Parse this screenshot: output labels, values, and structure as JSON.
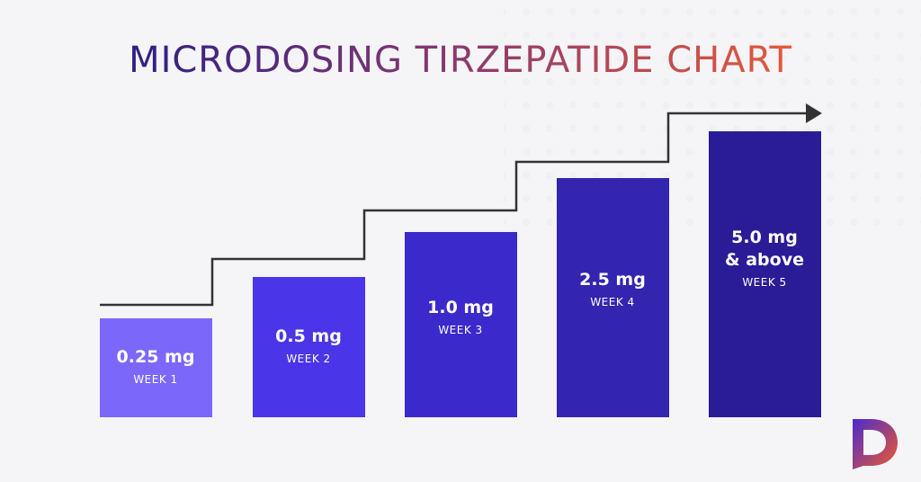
{
  "title": "MICRODOSING TIRZEPATIDE CHART",
  "steps": [
    {
      "dose": [
        "0.25 mg"
      ],
      "week": "WEEK 1"
    },
    {
      "dose": [
        "0.5 mg"
      ],
      "week": "WEEK 2"
    },
    {
      "dose": [
        "1.0 mg"
      ],
      "week": "WEEK 3"
    },
    {
      "dose": [
        "2.5 mg"
      ],
      "week": "WEEK 4"
    },
    {
      "dose": [
        "5.0 mg",
        "& above"
      ],
      "week": "WEEK 5"
    }
  ]
}
